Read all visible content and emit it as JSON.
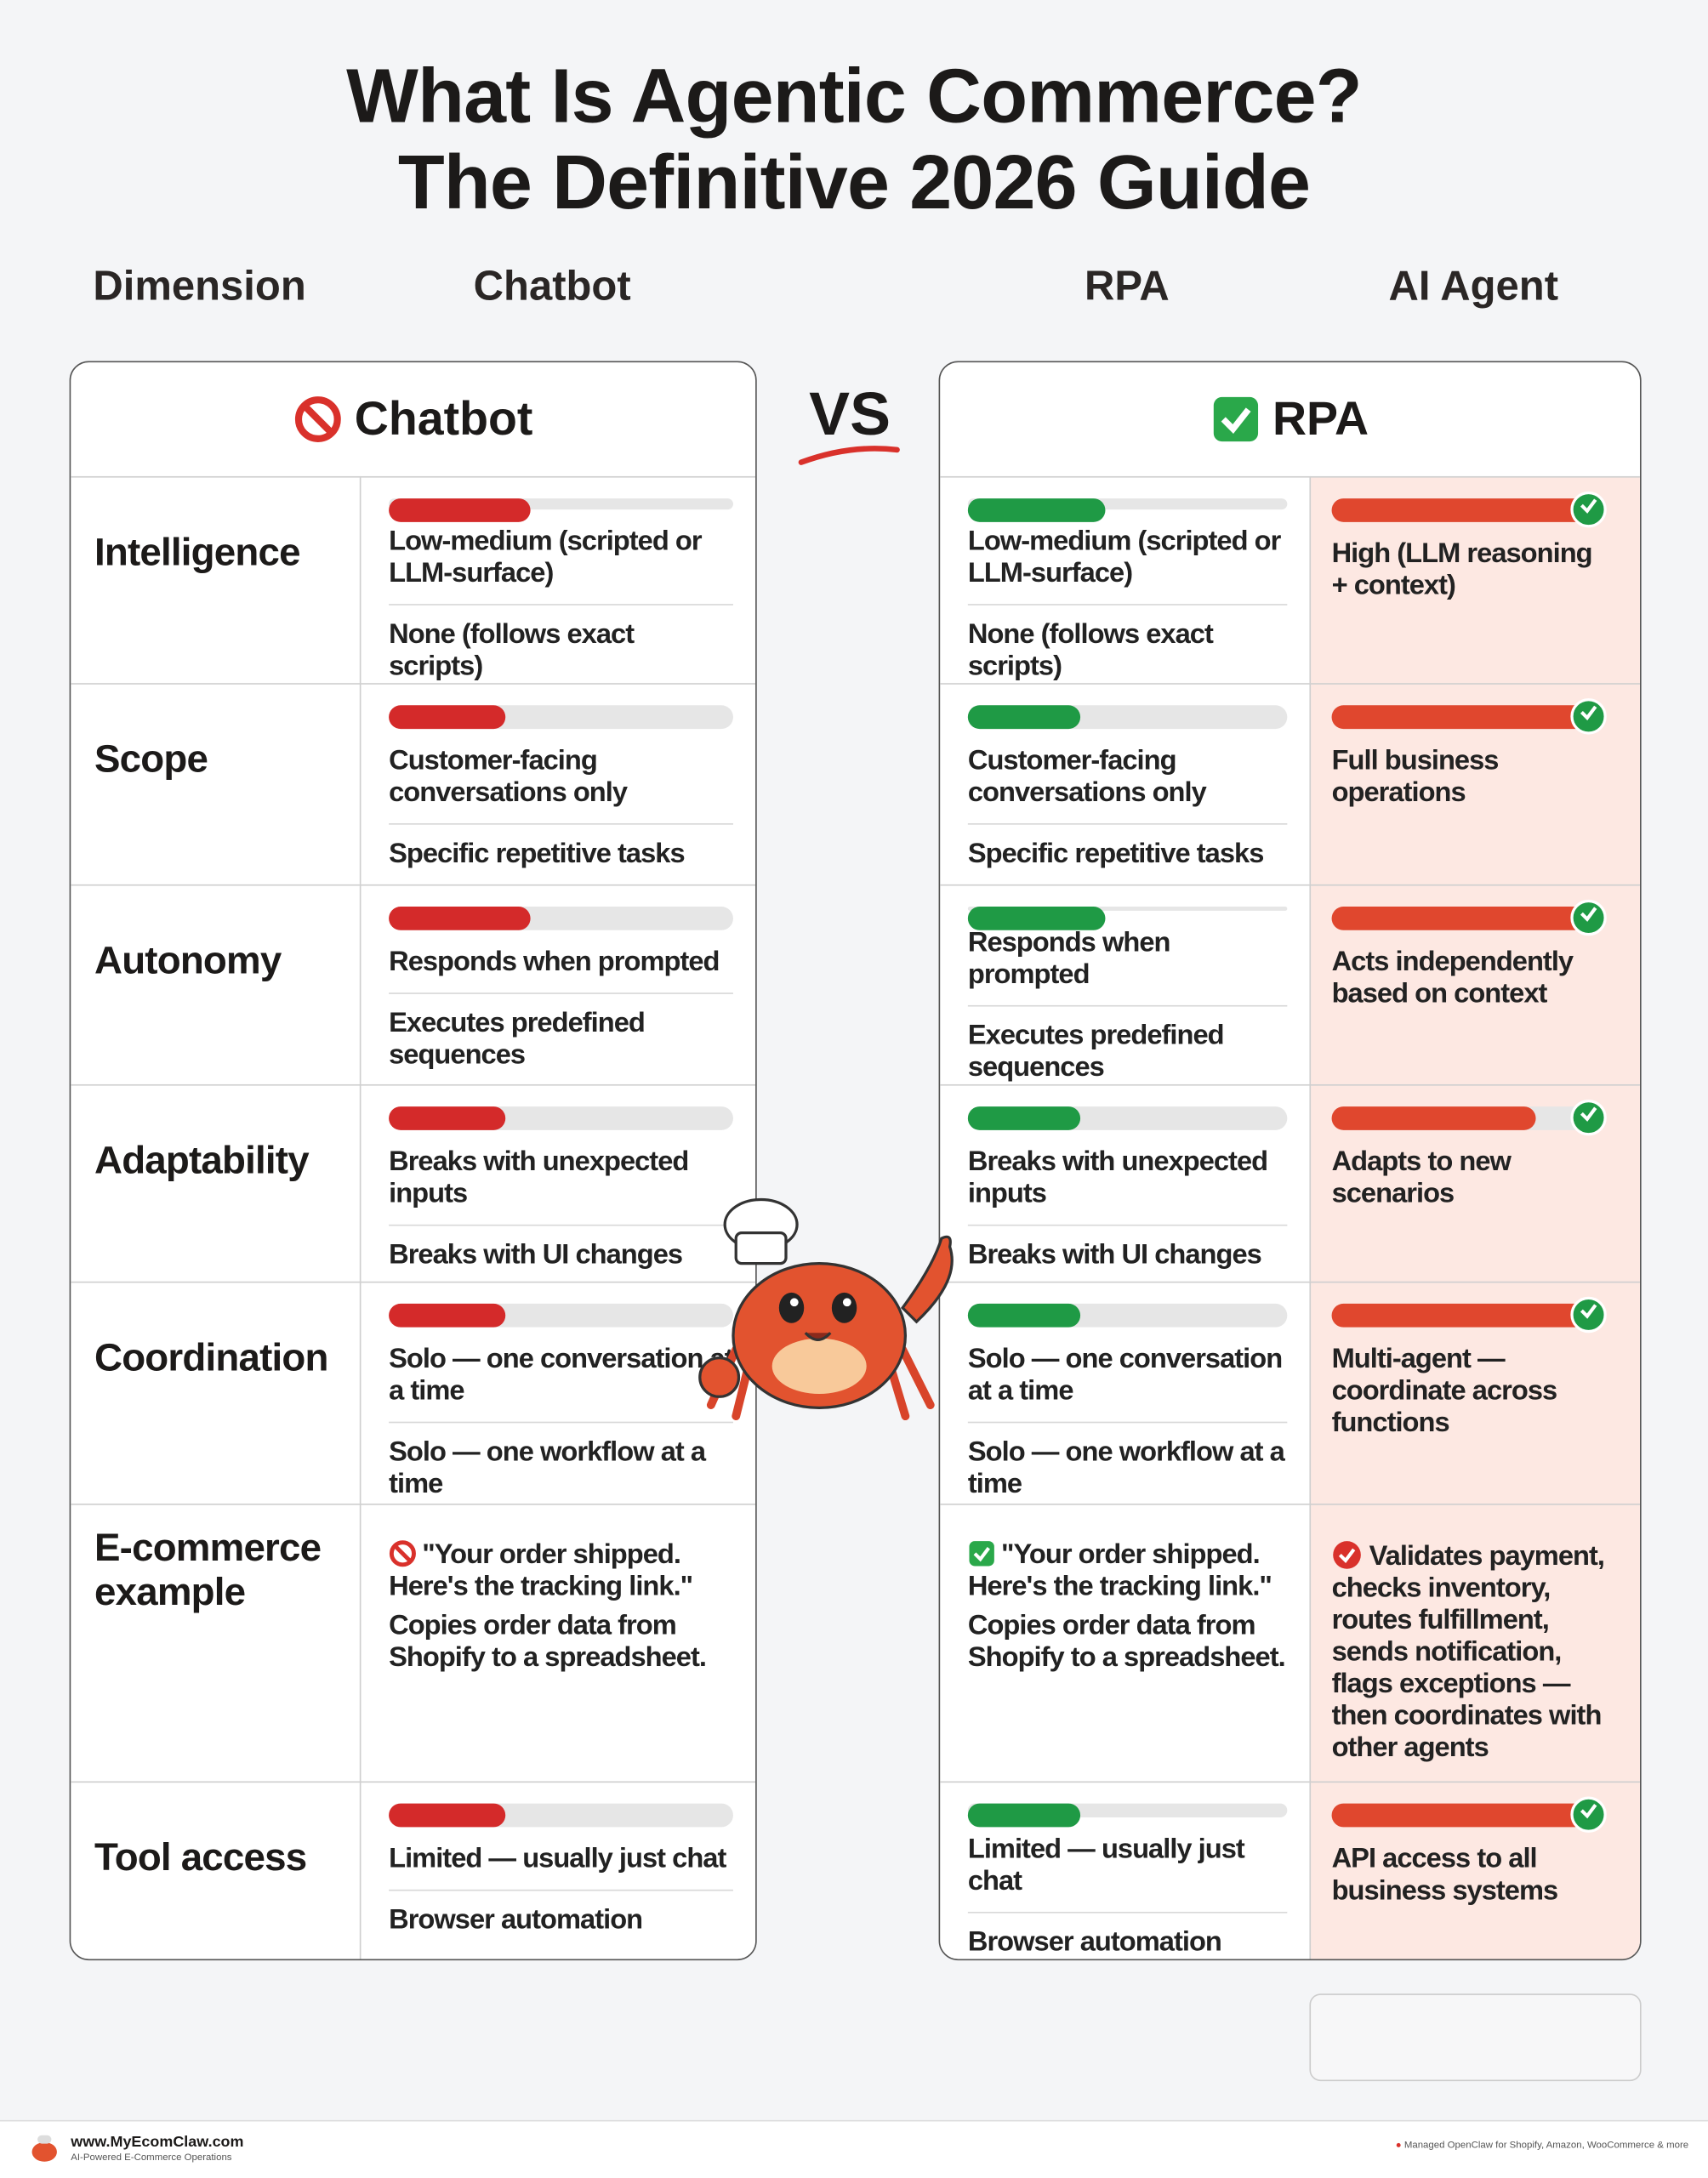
{
  "title": [
    "What Is Agentic Commerce?",
    "The Definitive 2026 Guide"
  ],
  "header": {
    "dimension": "Dimension",
    "chatbot": "Chatbot",
    "rpa": "RPA",
    "agent": "AI Agent"
  },
  "left_panel_title": "Chatbot",
  "vs": "VS",
  "right_panel_title": "RPA",
  "rows": [
    {
      "dimension": "Intelligence",
      "chatbot": "Low-medium (scripted or LLM-surface)",
      "rpa": "None (follows exact scripts)",
      "agent": "High (LLM reasoning + context)",
      "chatbot_level": 41,
      "rpa_level": 43,
      "agent_level": 100
    },
    {
      "dimension": "Scope",
      "chatbot": "Customer-facing conversations only",
      "rpa": "Specific repetitive tasks",
      "agent": "Full business operations",
      "chatbot_level": 34,
      "rpa_level": 35,
      "agent_level": 100
    },
    {
      "dimension": "Autonomy",
      "chatbot": "Responds when prompted",
      "rpa": "Executes predefined sequences",
      "agent": "Acts independently based on context",
      "chatbot_level": 41,
      "rpa_level": 43,
      "agent_level": 100
    },
    {
      "dimension": "Adaptability",
      "chatbot": "Breaks with unexpected inputs",
      "rpa": "Breaks with UI changes",
      "agent": "Adapts to new scenarios",
      "chatbot_level": 34,
      "rpa_level": 35,
      "agent_level": 80
    },
    {
      "dimension": "Coordination",
      "chatbot": "Solo — one conversation at a time",
      "rpa": "Solo — one workflow at a time",
      "agent": "Multi-agent — coordinate across functions",
      "chatbot_level": 34,
      "rpa_level": 35,
      "agent_level": 100
    },
    {
      "dimension": "E-commerce example",
      "chatbot": "\"Your order shipped. Here's the tracking link.\"",
      "rpa": "Copies order data from Shopify to a spreadsheet.",
      "agent": "Validates payment, checks inventory, routes fulfillment, sends notification, flags exceptions — then coordinates with other agents"
    },
    {
      "dimension": "Tool access",
      "chatbot": "Limited — usually just chat",
      "rpa": "Browser automation",
      "agent": "API access to all business systems",
      "chatbot_level": 34,
      "rpa_level": 35,
      "agent_level": 100
    }
  ],
  "footer": {
    "site": "www.MyEcomClaw.com",
    "tagline": "AI-Powered E-Commerce Operations",
    "note": "Managed OpenClaw for Shopify, Amazon, WooCommerce & more"
  }
}
